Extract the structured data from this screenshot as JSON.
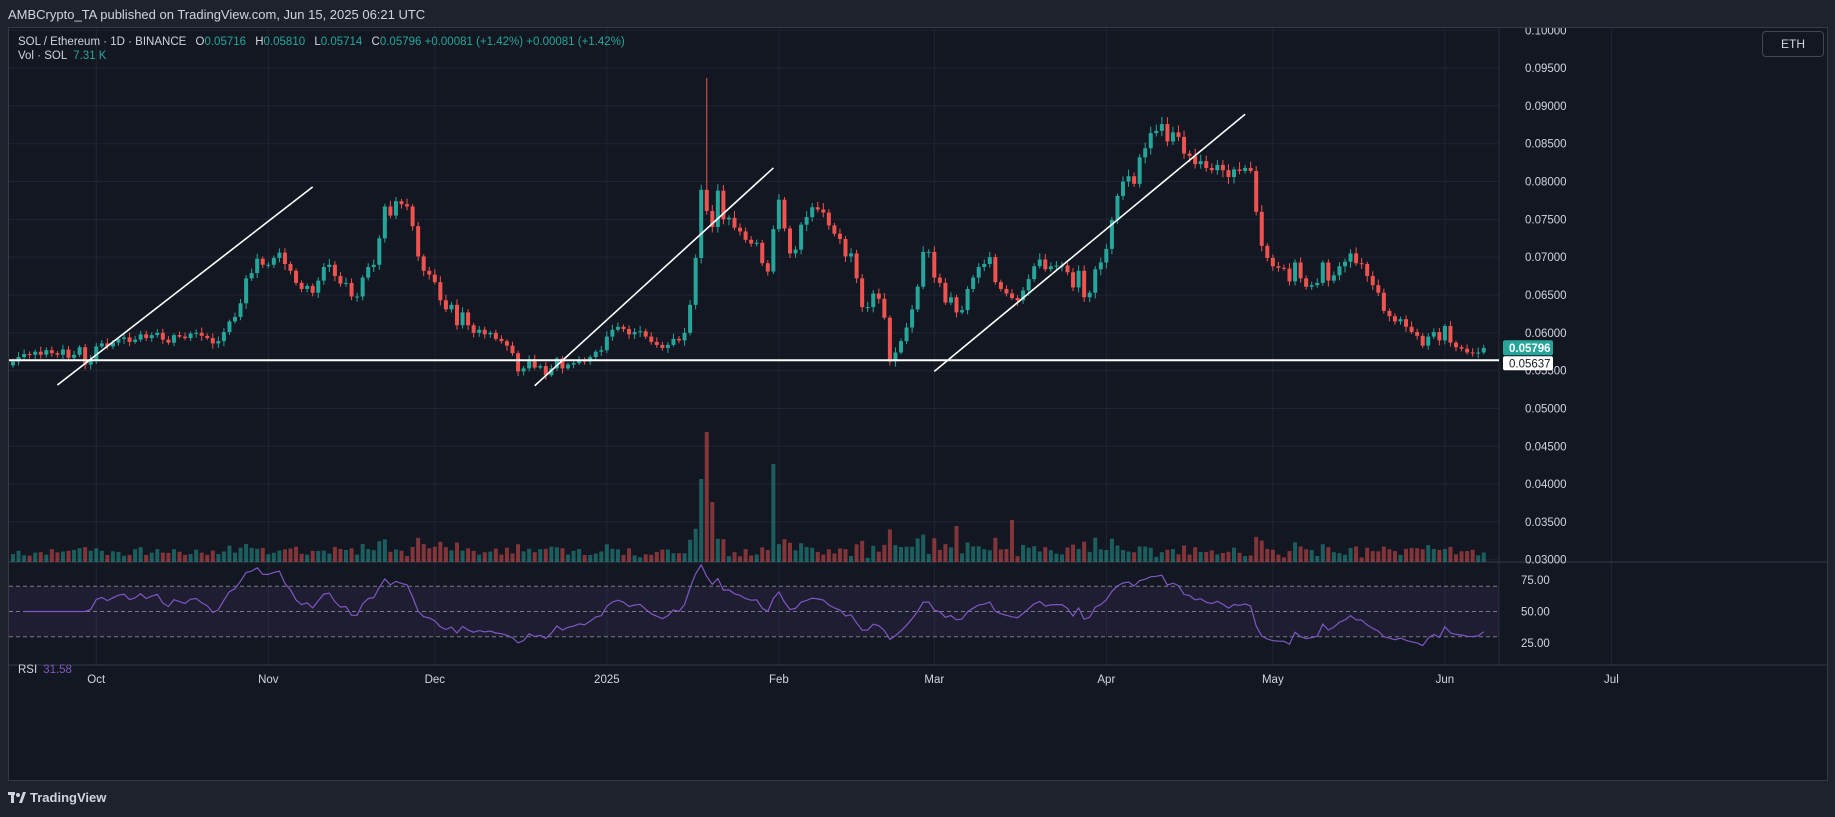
{
  "header": {
    "published_text": "AMBCrypto_TA published on TradingView.com, Jun 15, 2025 06:21 UTC"
  },
  "legend": {
    "symbol": "SOL / Ethereum · 1D · BINANCE",
    "o_label": "O",
    "o_value": "0.05716",
    "h_label": "H",
    "h_value": "0.05810",
    "l_label": "L",
    "l_value": "0.05714",
    "c_label": "C",
    "c_value": "0.05796",
    "change1": "+0.00081 (+1.42%)",
    "change2": "+0.00081 (+1.42%)",
    "vol_label": "Vol · SOL",
    "vol_value": "7.31 K"
  },
  "rsi": {
    "label": "RSI",
    "value": "31.58"
  },
  "currency_button": "ETH",
  "footer": {
    "brand": "TradingView"
  },
  "colors": {
    "up": "#26a69a",
    "down": "#ef5350",
    "rsi": "#7e57c2",
    "background": "#131722"
  },
  "chart_data": {
    "type": "candlestick",
    "title": "",
    "price_axis_ticks": [
      "0.10000",
      "0.09500",
      "0.09000",
      "0.08500",
      "0.08000",
      "0.07500",
      "0.07000",
      "0.06500",
      "0.06000",
      "0.05500",
      "0.05000",
      "0.04500",
      "0.04000",
      "0.03500",
      "0.03000"
    ],
    "price_range": [
      0.0297,
      0.1003
    ],
    "time_axis_ticks": [
      {
        "label": "Oct",
        "day": 15
      },
      {
        "label": "Nov",
        "day": 46
      },
      {
        "label": "Dec",
        "day": 76
      },
      {
        "label": "2025",
        "day": 107
      },
      {
        "label": "Feb",
        "day": 138
      },
      {
        "label": "Mar",
        "day": 166
      },
      {
        "label": "Apr",
        "day": 197
      },
      {
        "label": "May",
        "day": 227
      },
      {
        "label": "Jun",
        "day": 258
      },
      {
        "label": "Jul",
        "day": 288
      }
    ],
    "current_price": "0.05796",
    "support_level": 0.05637,
    "support_label": "0.05637",
    "closes": [
      0.0562,
      0.0568,
      0.0572,
      0.0571,
      0.0575,
      0.0571,
      0.0577,
      0.0573,
      0.0571,
      0.0578,
      0.0567,
      0.0571,
      0.0581,
      0.0558,
      0.0565,
      0.0582,
      0.0586,
      0.0582,
      0.0587,
      0.0592,
      0.0594,
      0.0588,
      0.0591,
      0.0598,
      0.0593,
      0.0597,
      0.06,
      0.0591,
      0.0587,
      0.0597,
      0.0595,
      0.0593,
      0.0599,
      0.06,
      0.0596,
      0.0593,
      0.0586,
      0.0589,
      0.0601,
      0.0615,
      0.0621,
      0.0639,
      0.0672,
      0.0679,
      0.0698,
      0.069,
      0.069,
      0.0699,
      0.0706,
      0.0691,
      0.0682,
      0.0666,
      0.0658,
      0.0662,
      0.0653,
      0.0669,
      0.0687,
      0.069,
      0.0675,
      0.0665,
      0.0666,
      0.0648,
      0.0648,
      0.0673,
      0.0687,
      0.069,
      0.0725,
      0.0767,
      0.0755,
      0.0774,
      0.077,
      0.0767,
      0.0741,
      0.0701,
      0.0682,
      0.0677,
      0.0667,
      0.0643,
      0.0631,
      0.0637,
      0.061,
      0.0627,
      0.061,
      0.06,
      0.0604,
      0.0598,
      0.06,
      0.0592,
      0.0589,
      0.0583,
      0.0573,
      0.0549,
      0.0553,
      0.0565,
      0.0554,
      0.0556,
      0.0544,
      0.0553,
      0.0566,
      0.0553,
      0.0558,
      0.056,
      0.0564,
      0.0562,
      0.0568,
      0.0575,
      0.0577,
      0.0595,
      0.0604,
      0.0608,
      0.0605,
      0.0598,
      0.0601,
      0.0602,
      0.0595,
      0.0588,
      0.0584,
      0.058,
      0.0584,
      0.0592,
      0.059,
      0.06,
      0.0637,
      0.0699,
      0.0789,
      0.0761,
      0.074,
      0.0788,
      0.075,
      0.0752,
      0.0739,
      0.0734,
      0.0723,
      0.0718,
      0.0719,
      0.0692,
      0.0681,
      0.0737,
      0.0776,
      0.0738,
      0.0705,
      0.071,
      0.0743,
      0.0753,
      0.0766,
      0.0763,
      0.0759,
      0.0742,
      0.0731,
      0.0724,
      0.0701,
      0.0705,
      0.0672,
      0.0634,
      0.0634,
      0.0652,
      0.0645,
      0.062,
      0.0562,
      0.0574,
      0.0589,
      0.0607,
      0.0631,
      0.0661,
      0.0707,
      0.0707,
      0.0673,
      0.0666,
      0.064,
      0.0647,
      0.0627,
      0.063,
      0.0658,
      0.0673,
      0.0687,
      0.0691,
      0.07,
      0.0667,
      0.0658,
      0.0652,
      0.0646,
      0.0643,
      0.0656,
      0.0671,
      0.0688,
      0.0697,
      0.0684,
      0.0688,
      0.0689,
      0.0689,
      0.068,
      0.066,
      0.0682,
      0.0647,
      0.0653,
      0.0684,
      0.0693,
      0.0711,
      0.0749,
      0.0781,
      0.08,
      0.0807,
      0.0797,
      0.0832,
      0.0844,
      0.0864,
      0.0867,
      0.0876,
      0.0853,
      0.0865,
      0.0859,
      0.0837,
      0.0834,
      0.0823,
      0.0827,
      0.0818,
      0.0815,
      0.0822,
      0.0815,
      0.0806,
      0.0816,
      0.0814,
      0.0818,
      0.0814,
      0.076,
      0.0715,
      0.0699,
      0.0688,
      0.0686,
      0.0685,
      0.0668,
      0.0693,
      0.0672,
      0.0661,
      0.0663,
      0.0666,
      0.0693,
      0.0669,
      0.0676,
      0.0688,
      0.0694,
      0.0705,
      0.0692,
      0.0691,
      0.0675,
      0.0663,
      0.0653,
      0.0629,
      0.0622,
      0.0615,
      0.0618,
      0.0608,
      0.0601,
      0.0596,
      0.0583,
      0.0595,
      0.0601,
      0.059,
      0.0609,
      0.0587,
      0.0581,
      0.0579,
      0.0574,
      0.0573,
      0.0574,
      0.058
    ],
    "rsi_scale_ticks": [
      "75.00",
      "50.00",
      "25.00"
    ],
    "rsi_levels": [
      70,
      50,
      30
    ],
    "trendlines": [
      {
        "from": [
          8,
          0.0531
        ],
        "to": [
          54,
          0.0793
        ]
      },
      {
        "from": [
          94,
          0.053
        ],
        "to": [
          137,
          0.0818
        ]
      },
      {
        "from": [
          166,
          0.0549
        ],
        "to": [
          222,
          0.0889
        ]
      }
    ]
  }
}
